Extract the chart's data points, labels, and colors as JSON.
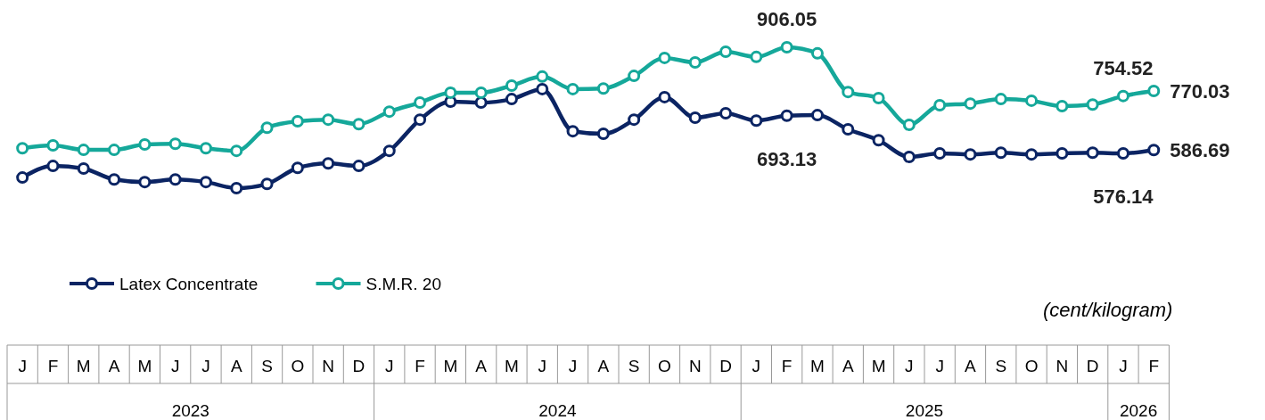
{
  "chart_data": {
    "type": "line",
    "categories": [
      "J",
      "F",
      "M",
      "A",
      "M",
      "J",
      "J",
      "A",
      "S",
      "O",
      "N",
      "D",
      "J",
      "F",
      "M",
      "A",
      "M",
      "J",
      "J",
      "A",
      "S",
      "O",
      "N",
      "D",
      "J",
      "F",
      "M",
      "A",
      "M",
      "J",
      "J",
      "A",
      "S",
      "O",
      "N",
      "D",
      "J",
      "F"
    ],
    "series": [
      {
        "name": "Latex Concentrate",
        "color": "#0b2463",
        "values": [
          501,
          537,
          529,
          495,
          487,
          495,
          487,
          468,
          481,
          531,
          545,
          537,
          584,
          681,
          737,
          734,
          745,
          776,
          645,
          637,
          681,
          751,
          687,
          701,
          678,
          693.13,
          695,
          651,
          617,
          565,
          576,
          573,
          578,
          573,
          576,
          578,
          576.14,
          586.69
        ],
        "value_labels": [
          null,
          null,
          null,
          null,
          null,
          null,
          null,
          null,
          null,
          null,
          null,
          null,
          null,
          null,
          null,
          null,
          null,
          null,
          null,
          null,
          null,
          null,
          null,
          null,
          null,
          "693.13",
          null,
          null,
          null,
          null,
          null,
          null,
          null,
          null,
          null,
          null,
          "576.14",
          "586.69"
        ]
      },
      {
        "name": "S.M.R. 20",
        "color": "#15a89a",
        "values": [
          592,
          601,
          587,
          587,
          604,
          606,
          592,
          584,
          656,
          676,
          681,
          667,
          706,
          734,
          765,
          765,
          787,
          815,
          776,
          778,
          817,
          873,
          859,
          892,
          876,
          906.05,
          887,
          767,
          748,
          665,
          726,
          731,
          745,
          740,
          723,
          728,
          754.52,
          770.03
        ],
        "value_labels": [
          null,
          null,
          null,
          null,
          null,
          null,
          null,
          null,
          null,
          null,
          null,
          null,
          null,
          null,
          null,
          null,
          null,
          null,
          null,
          null,
          null,
          null,
          null,
          null,
          null,
          "906.05",
          null,
          null,
          null,
          null,
          null,
          null,
          null,
          null,
          null,
          null,
          "754.52",
          "770.03"
        ]
      }
    ],
    "marker": "circle",
    "legend": "bottom left",
    "annotations": [
      "2023",
      "2024",
      "2025",
      "2026",
      "(cent/kilogram)"
    ]
  }
}
